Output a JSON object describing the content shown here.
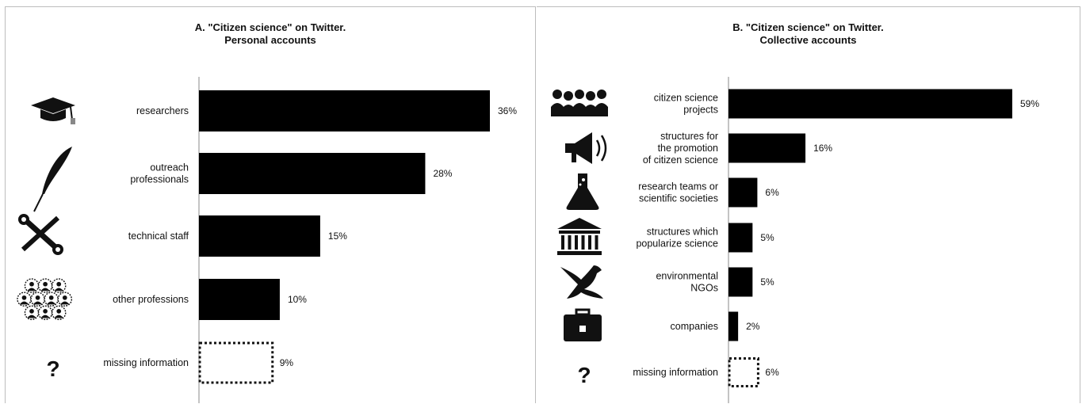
{
  "chart_data": [
    {
      "type": "bar",
      "orientation": "horizontal",
      "title": "A. \"Citizen science\" on Twitter.",
      "subtitle": "Personal accounts",
      "categories": [
        {
          "lines": [
            "researchers"
          ],
          "value": 36,
          "label": "36%",
          "icon": "graduation-cap-icon",
          "dotted": false
        },
        {
          "lines": [
            "outreach",
            "professionals"
          ],
          "value": 28,
          "label": "28%",
          "icon": "quill-pen-icon",
          "dotted": false
        },
        {
          "lines": [
            "technical staff"
          ],
          "value": 15,
          "label": "15%",
          "icon": "tools-icon",
          "dotted": false
        },
        {
          "lines": [
            "other professions"
          ],
          "value": 10,
          "label": "10%",
          "icon": "people-group-icon",
          "dotted": false
        },
        {
          "lines": [
            "missing information"
          ],
          "value": 9,
          "label": "9%",
          "icon": "question-mark-icon",
          "dotted": true
        }
      ],
      "xlim": [
        0,
        36
      ]
    },
    {
      "type": "bar",
      "orientation": "horizontal",
      "title": "B. \"Citizen science\" on Twitter.",
      "subtitle": "Collective accounts",
      "categories": [
        {
          "lines": [
            "citizen science",
            "projects"
          ],
          "value": 59,
          "label": "59%",
          "icon": "crowd-icon",
          "dotted": false
        },
        {
          "lines": [
            "structures for",
            "the promotion",
            "of citizen science"
          ],
          "value": 16,
          "label": "16%",
          "icon": "megaphone-icon",
          "dotted": false
        },
        {
          "lines": [
            "research teams or",
            "scientific societies"
          ],
          "value": 6,
          "label": "6%",
          "icon": "flask-icon",
          "dotted": false
        },
        {
          "lines": [
            "structures which",
            "popularize science"
          ],
          "value": 5,
          "label": "5%",
          "icon": "museum-icon",
          "dotted": false
        },
        {
          "lines": [
            "environmental",
            "NGOs"
          ],
          "value": 5,
          "label": "5%",
          "icon": "bird-icon",
          "dotted": false
        },
        {
          "lines": [
            "companies"
          ],
          "value": 2,
          "label": "2%",
          "icon": "briefcase-icon",
          "dotted": false
        },
        {
          "lines": [
            "missing information"
          ],
          "value": 6,
          "label": "6%",
          "icon": "question-mark-icon",
          "dotted": true
        }
      ],
      "xlim": [
        0,
        59
      ]
    }
  ]
}
